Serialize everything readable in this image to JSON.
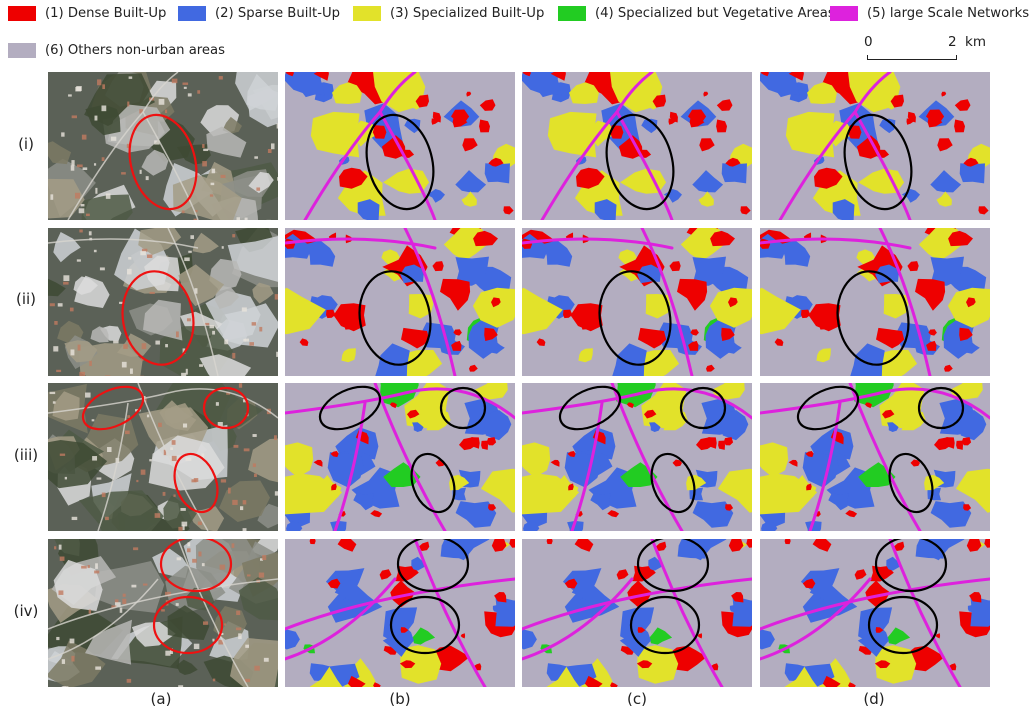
{
  "legend": [
    {
      "label": "(1) Dense Built-Up",
      "color": "#ee0000"
    },
    {
      "label": "(2) Sparse Built-Up",
      "color": "#4169e1"
    },
    {
      "label": "(3) Specialized Built-Up",
      "color": "#e2e22a"
    },
    {
      "label": "(4) Specialized but Vegetative Areas",
      "color": "#22cc22"
    },
    {
      "label": "(5) large Scale Networks",
      "color": "#dd22dd"
    },
    {
      "label": "(6) Others non-urban areas",
      "color": "#b3adc0"
    }
  ],
  "scale_bar": {
    "start": "0",
    "end": "2",
    "unit": "km"
  },
  "rows": [
    "(i)",
    "(ii)",
    "(iii)",
    "(iv)"
  ],
  "columns": [
    "(a)",
    "(b)",
    "(c)",
    "(d)"
  ],
  "colors": {
    "highlight_satellite": "#ee1111",
    "highlight_map": "#000000"
  }
}
